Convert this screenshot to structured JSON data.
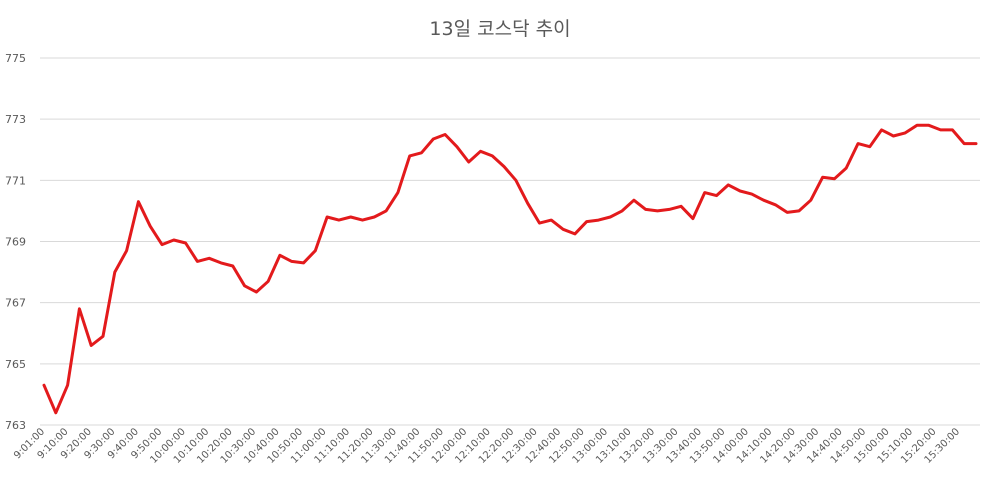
{
  "chart_data": {
    "type": "line",
    "title": "13일 코스닥 추이",
    "xlabel": "",
    "ylabel": "",
    "ylim": [
      763,
      775
    ],
    "yticks": [
      775,
      773,
      771,
      769,
      767,
      765,
      763
    ],
    "ytick_labels": [
      "775",
      "773",
      "771",
      "769",
      "767",
      "765",
      "763"
    ],
    "xtick_labels": [
      "9:01:00",
      "9:10:00",
      "9:20:00",
      "9:30:00",
      "9:40:00",
      "9:50:00",
      "10:00:00",
      "10:10:00",
      "10:20:00",
      "10:30:00",
      "10:40:00",
      "10:50:00",
      "11:00:00",
      "11:10:00",
      "11:20:00",
      "11:30:00",
      "11:40:00",
      "11:50:00",
      "12:00:00",
      "12:10:00",
      "12:20:00",
      "12:30:00",
      "12:40:00",
      "12:50:00",
      "13:00:00",
      "13:10:00",
      "13:20:00",
      "13:30:00",
      "13:40:00",
      "13:50:00",
      "14:00:00",
      "14:10:00",
      "14:20:00",
      "14:30:00",
      "14:40:00",
      "14:50:00",
      "15:00:00",
      "15:10:00",
      "15:20:00",
      "15:30:00"
    ],
    "grid": true,
    "legend": "none",
    "series_color": "#e31a1c",
    "series": [
      {
        "name": "",
        "values": [
          764.3,
          763.4,
          764.3,
          766.8,
          765.6,
          765.9,
          768.0,
          768.7,
          770.3,
          769.5,
          768.9,
          769.05,
          768.95,
          768.35,
          768.45,
          768.3,
          768.2,
          767.55,
          767.35,
          767.7,
          768.55,
          768.35,
          768.3,
          768.7,
          769.8,
          769.7,
          769.8,
          769.7,
          769.8,
          770.0,
          770.6,
          771.8,
          771.9,
          772.35,
          772.5,
          772.1,
          771.6,
          771.95,
          771.8,
          771.45,
          771.0,
          770.25,
          769.6,
          769.7,
          769.4,
          769.25,
          769.65,
          769.7,
          769.8,
          770.0,
          770.35,
          770.05,
          770.0,
          770.05,
          770.15,
          769.75,
          770.6,
          770.5,
          770.85,
          770.65,
          770.55,
          770.35,
          770.2,
          769.95,
          770.0,
          770.35,
          771.1,
          771.05,
          771.4,
          772.2,
          772.1,
          772.65,
          772.45,
          772.55,
          772.8,
          772.8,
          772.65,
          772.65,
          772.2,
          772.2
        ]
      }
    ]
  }
}
